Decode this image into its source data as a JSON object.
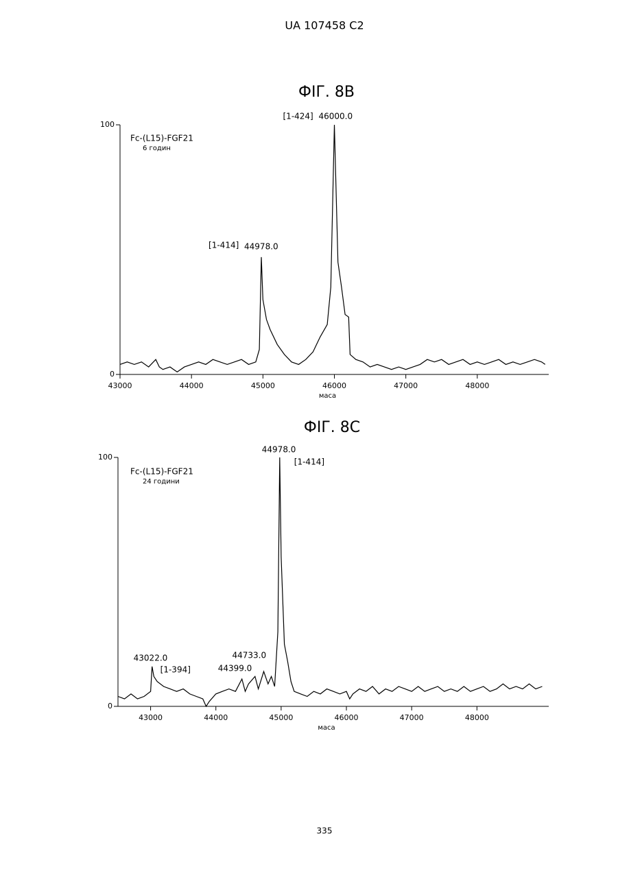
{
  "header": "UA   107458   C2",
  "page_number": "335",
  "chart_data": [
    {
      "type": "line",
      "title": "ФІГ. 8B",
      "x_label": "маса",
      "label": "Fc-(L15)-FGF21",
      "sublabel": "6 годин",
      "xlim": [
        43000,
        49000
      ],
      "xticks": [
        43000,
        44000,
        45000,
        46000,
        47000,
        48000
      ],
      "ylim": [
        0,
        100
      ],
      "yticks": [
        0,
        100
      ],
      "color": "#000000",
      "x": [
        43000,
        43100,
        43200,
        43300,
        43400,
        43500,
        43550,
        43600,
        43700,
        43800,
        43900,
        44000,
        44100,
        44200,
        44300,
        44400,
        44500,
        44600,
        44700,
        44800,
        44900,
        44950,
        44978,
        45000,
        45050,
        45100,
        45200,
        45300,
        45400,
        45500,
        45600,
        45700,
        45800,
        45900,
        45950,
        46000,
        46050,
        46100,
        46150,
        46200,
        46220,
        46300,
        46400,
        46500,
        46600,
        46700,
        46800,
        46900,
        47000,
        47100,
        47200,
        47300,
        47400,
        47500,
        47600,
        47700,
        47800,
        47900,
        48000,
        48100,
        48200,
        48300,
        48400,
        48500,
        48600,
        48700,
        48800,
        48900,
        48950
      ],
      "values": [
        4,
        5,
        4,
        5,
        3,
        6,
        3,
        2,
        3,
        1,
        3,
        4,
        5,
        4,
        6,
        5,
        4,
        5,
        6,
        4,
        5,
        10,
        47,
        30,
        22,
        18,
        12,
        8,
        5,
        4,
        6,
        9,
        15,
        20,
        35,
        100,
        45,
        35,
        24,
        23,
        8,
        6,
        5,
        3,
        4,
        3,
        2,
        3,
        2,
        3,
        4,
        6,
        5,
        6,
        4,
        5,
        6,
        4,
        5,
        4,
        5,
        6,
        4,
        5,
        4,
        5,
        6,
        5,
        4
      ],
      "annotations": [
        {
          "text": "[1-424]",
          "x": 46000,
          "y": 100
        },
        {
          "text": "46000.0",
          "x": 46000,
          "y": 100
        },
        {
          "text": "[1-414]",
          "x": 44978,
          "y": 47
        },
        {
          "text": "44978.0",
          "x": 44978,
          "y": 47
        }
      ]
    },
    {
      "type": "line",
      "title": "ФІГ. 8C",
      "x_label": "маса",
      "label": "Fc-(L15)-FGF21",
      "sublabel": "24 години",
      "xlim": [
        42500,
        49100
      ],
      "xticks": [
        43000,
        44000,
        45000,
        46000,
        47000,
        48000
      ],
      "ylim": [
        0,
        100
      ],
      "yticks": [
        0,
        100
      ],
      "color": "#000000",
      "x": [
        42500,
        42600,
        42700,
        42800,
        42900,
        43000,
        43022,
        43050,
        43100,
        43200,
        43300,
        43400,
        43500,
        43600,
        43700,
        43800,
        43850,
        43900,
        44000,
        44100,
        44200,
        44300,
        44399,
        44450,
        44500,
        44600,
        44650,
        44733,
        44800,
        44850,
        44900,
        44950,
        44978,
        45000,
        45050,
        45100,
        45150,
        45200,
        45300,
        45400,
        45500,
        45600,
        45700,
        45800,
        45900,
        46000,
        46050,
        46100,
        46200,
        46300,
        46400,
        46500,
        46600,
        46700,
        46800,
        46900,
        47000,
        47100,
        47200,
        47300,
        47400,
        47500,
        47600,
        47700,
        47800,
        47900,
        48000,
        48100,
        48200,
        48300,
        48400,
        48500,
        48600,
        48700,
        48800,
        48900,
        49000
      ],
      "values": [
        4,
        3,
        5,
        3,
        4,
        6,
        16,
        12,
        10,
        8,
        7,
        6,
        7,
        5,
        4,
        3,
        0,
        2,
        5,
        6,
        7,
        6,
        11,
        6,
        9,
        12,
        7,
        14,
        9,
        12,
        8,
        30,
        100,
        60,
        25,
        18,
        10,
        6,
        5,
        4,
        6,
        5,
        7,
        6,
        5,
        6,
        3,
        5,
        7,
        6,
        8,
        5,
        7,
        6,
        8,
        7,
        6,
        8,
        6,
        7,
        8,
        6,
        7,
        6,
        8,
        6,
        7,
        8,
        6,
        7,
        9,
        7,
        8,
        7,
        9,
        7,
        8
      ],
      "annotations": [
        {
          "text": "44978.0",
          "x": 44978,
          "y": 100
        },
        {
          "text": "[1-414]",
          "x": 44978,
          "y": 100
        },
        {
          "text": "43022.0",
          "x": 43022,
          "y": 16
        },
        {
          "text": "[1-394]",
          "x": 43022,
          "y": 16
        },
        {
          "text": "44733.0",
          "x": 44733,
          "y": 14
        },
        {
          "text": "44399.0",
          "x": 44399,
          "y": 11
        }
      ]
    }
  ]
}
